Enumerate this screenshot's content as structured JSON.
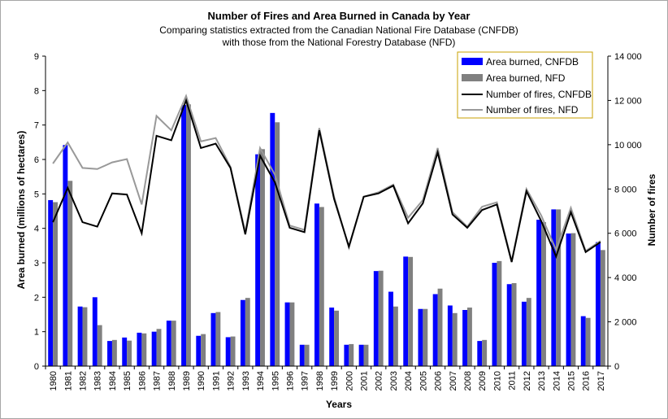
{
  "chart_data": {
    "type": "bar",
    "title": "Number of Fires and Area Burned in Canada by Year",
    "subtitle_lines": [
      "Comparing  statistics extracted from  the Canadian  National Fire Database  (CNFDB)",
      "with those from the National Forestry Database (NFD)"
    ],
    "xlabel": "Years",
    "ylabel": "Area burned (millions of hectares)",
    "y2label": "Number of fires",
    "ylim": [
      0,
      9
    ],
    "y_ticks": [
      "0",
      "1",
      "2",
      "3",
      "4",
      "5",
      "6",
      "7",
      "8",
      "9"
    ],
    "y2lim": [
      0,
      14000
    ],
    "y2_ticks": [
      "0",
      "2 000",
      "4 000",
      "6 000",
      "8 000",
      "10 000",
      "12 000",
      "14 000"
    ],
    "categories": [
      "1980",
      "1981",
      "1982",
      "1983",
      "1984",
      "1985",
      "1986",
      "1987",
      "1988",
      "1989",
      "1990",
      "1991",
      "1992",
      "1993",
      "1994",
      "1995",
      "1996",
      "1997",
      "1998",
      "1999",
      "2000",
      "2001",
      "2002",
      "2003",
      "2004",
      "2005",
      "2006",
      "2007",
      "2008",
      "2009",
      "2010",
      "2011",
      "2012",
      "2013",
      "2014",
      "2015",
      "2016",
      "2017"
    ],
    "series": [
      {
        "name": "Area burned, CNFDB",
        "kind": "bar",
        "axis": "left",
        "color": "#0000ff",
        "values": [
          4.82,
          6.42,
          1.73,
          2.0,
          0.73,
          0.83,
          0.97,
          1.0,
          1.32,
          7.58,
          0.88,
          1.54,
          0.84,
          1.92,
          6.15,
          7.35,
          1.85,
          0.62,
          4.72,
          1.7,
          0.62,
          0.62,
          2.76,
          2.16,
          3.18,
          1.66,
          2.09,
          1.76,
          1.63,
          0.73,
          3.0,
          2.38,
          1.87,
          4.25,
          4.55,
          3.85,
          1.45,
          3.6
        ]
      },
      {
        "name": "Area burned, NFD",
        "kind": "bar",
        "axis": "left",
        "color": "#808080",
        "values": [
          4.76,
          5.38,
          1.71,
          1.19,
          0.76,
          0.74,
          0.95,
          1.08,
          1.32,
          7.6,
          0.93,
          1.57,
          0.86,
          1.98,
          6.3,
          7.08,
          1.85,
          0.62,
          4.62,
          1.61,
          0.64,
          0.62,
          2.77,
          1.73,
          3.17,
          1.66,
          2.25,
          1.54,
          1.7,
          0.76,
          3.05,
          2.41,
          1.98,
          4.18,
          4.55,
          3.86,
          1.4,
          3.37
        ]
      },
      {
        "name": "Number of fires, CNFDB",
        "kind": "line",
        "axis": "right",
        "color": "#000000",
        "values": [
          6500,
          8050,
          6500,
          6300,
          7800,
          7750,
          6000,
          10400,
          10200,
          12000,
          9850,
          10050,
          8950,
          5950,
          9500,
          8300,
          6250,
          6050,
          10650,
          7550,
          5400,
          7650,
          7800,
          8150,
          6450,
          7350,
          9650,
          6850,
          6250,
          7050,
          7300,
          4700,
          7900,
          6550,
          4950,
          6950,
          5150,
          5600
        ]
      },
      {
        "name": "Number of fires, NFD",
        "kind": "line",
        "axis": "right",
        "color": "#999999",
        "values": [
          9150,
          10100,
          8950,
          8900,
          9200,
          9350,
          7300,
          11300,
          10650,
          12200,
          10150,
          10300,
          9000,
          6050,
          9850,
          8650,
          6350,
          6150,
          10750,
          7650,
          5350,
          7650,
          7850,
          8200,
          6700,
          7500,
          9850,
          6950,
          6300,
          7200,
          7400,
          4750,
          8000,
          6800,
          5250,
          7150,
          5200,
          5650
        ]
      }
    ],
    "legend_position": "top-right",
    "grid": false
  }
}
